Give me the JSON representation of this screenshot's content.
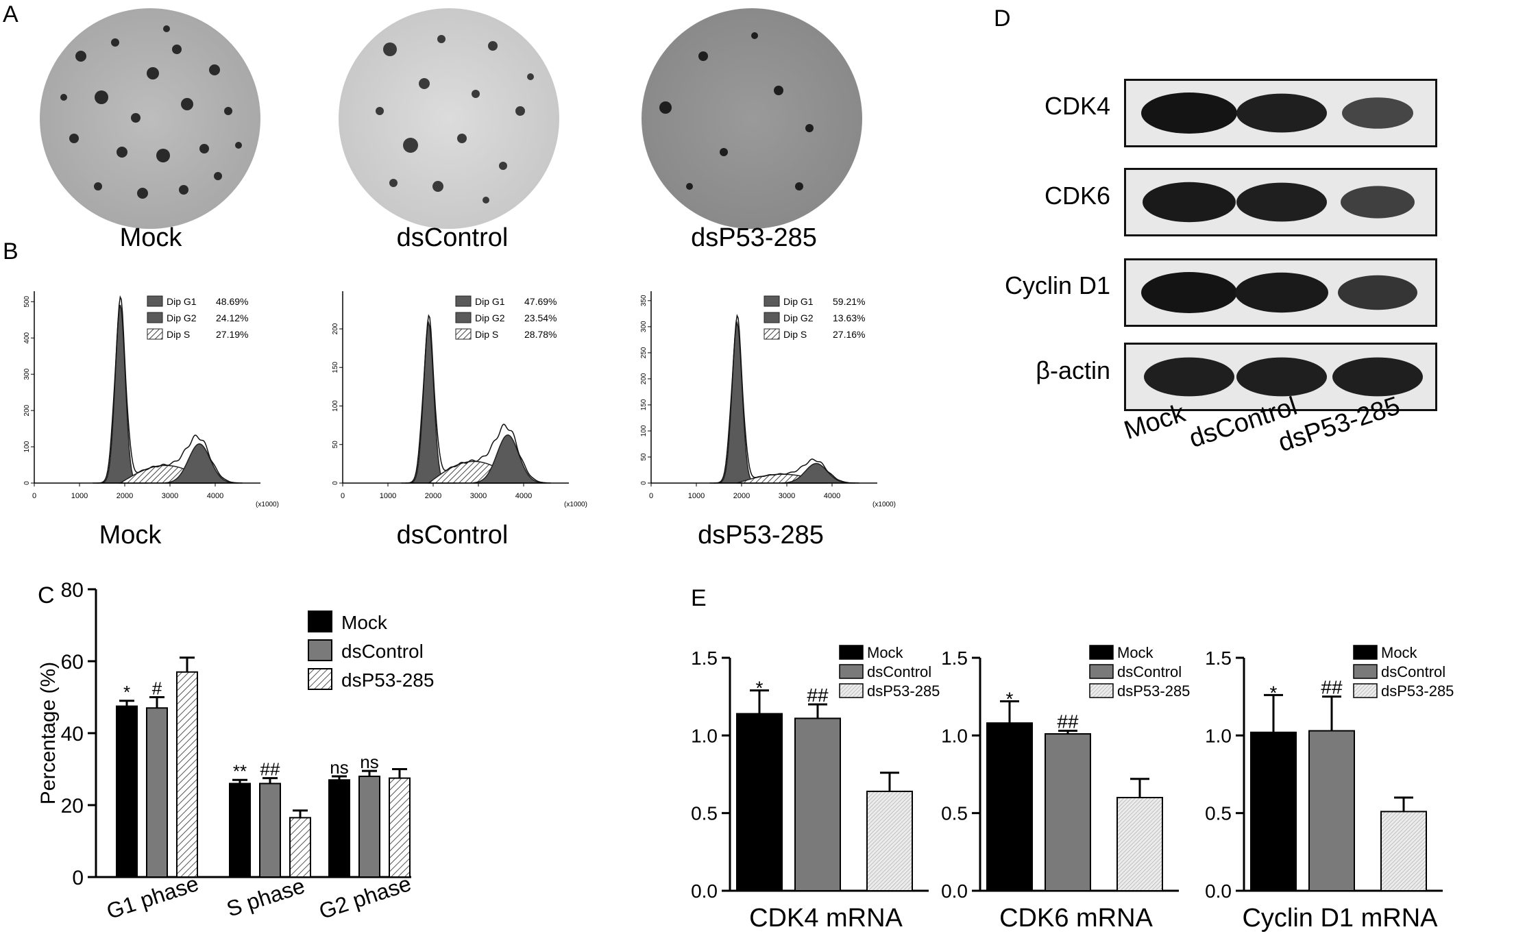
{
  "panels": {
    "A": "A",
    "B": "B",
    "C": "C",
    "D": "D",
    "E": "E"
  },
  "groups": [
    "Mock",
    "dsControl",
    "dsP53-285"
  ],
  "panel_b": {
    "legend_labels": [
      "Dip G1",
      "Dip G2",
      "Dip S"
    ],
    "x_ticks": [
      "0",
      "1000",
      "2000",
      "3000",
      "4000"
    ],
    "x_unit": "(x1000)",
    "plots": [
      {
        "name": "Mock",
        "g1": "48.69%",
        "g2": "24.12%",
        "s": "27.19%",
        "y_ticks": [
          "0",
          "100",
          "200",
          "300",
          "400",
          "500"
        ],
        "ymax": 510
      },
      {
        "name": "dsControl",
        "g1": "47.69%",
        "g2": "23.54%",
        "s": "28.78%",
        "y_ticks": [
          "0",
          "50",
          "100",
          "150",
          "200"
        ],
        "ymax": 240
      },
      {
        "name": "dsP53-285",
        "g1": "59.21%",
        "g2": "13.63%",
        "s": "27.16%",
        "y_ticks": [
          "0",
          "50",
          "100",
          "150",
          "200",
          "250",
          "300",
          "350"
        ],
        "ymax": 355
      }
    ]
  },
  "panel_d": {
    "bands": [
      "CDK4",
      "CDK6",
      "Cyclin D1",
      "β-actin"
    ],
    "intensity": [
      [
        1.0,
        0.9,
        0.55
      ],
      [
        0.95,
        0.9,
        0.6
      ],
      [
        1.0,
        0.95,
        0.7
      ],
      [
        0.9,
        0.9,
        0.9
      ]
    ]
  },
  "chart_data": [
    {
      "type": "bar",
      "panel": "C",
      "ylabel": "Percentage (%)",
      "ylim": [
        0,
        80
      ],
      "y_ticks": [
        "0",
        "20",
        "40",
        "60",
        "80"
      ],
      "categories": [
        "G1 phase",
        "S phase",
        "G2 phase"
      ],
      "series": [
        {
          "name": "Mock",
          "values": [
            47.5,
            26,
            27
          ],
          "errors": [
            1.5,
            1,
            1
          ],
          "marks": [
            "*",
            "**",
            "ns"
          ]
        },
        {
          "name": "dsControl",
          "values": [
            47,
            26,
            28
          ],
          "errors": [
            3,
            1.5,
            1.5
          ],
          "marks": [
            "#",
            "##",
            "ns"
          ]
        },
        {
          "name": "dsP53-285",
          "values": [
            57,
            16.5,
            27.5
          ],
          "errors": [
            4,
            2,
            2.5
          ],
          "marks": [
            "",
            "",
            ""
          ]
        }
      ],
      "legend": "top-right"
    },
    {
      "type": "bar",
      "panel": "E",
      "xlabel": "CDK4 mRNA",
      "ylim": [
        0,
        1.5
      ],
      "y_ticks": [
        "0.0",
        "0.5",
        "1.0",
        "1.5"
      ],
      "categories": [
        "Mock",
        "dsControl",
        "dsP53-285"
      ],
      "values": [
        1.14,
        1.11,
        0.64
      ],
      "errors": [
        0.15,
        0.09,
        0.12
      ],
      "marks": [
        "*",
        "##",
        ""
      ]
    },
    {
      "type": "bar",
      "panel": "E",
      "xlabel": "CDK6 mRNA",
      "ylim": [
        0,
        1.5
      ],
      "y_ticks": [
        "0.0",
        "0.5",
        "1.0",
        "1.5"
      ],
      "categories": [
        "Mock",
        "dsControl",
        "dsP53-285"
      ],
      "values": [
        1.08,
        1.01,
        0.6
      ],
      "errors": [
        0.14,
        0.02,
        0.12
      ],
      "marks": [
        "*",
        "##",
        ""
      ]
    },
    {
      "type": "bar",
      "panel": "E",
      "xlabel": "Cyclin D1 mRNA",
      "ylim": [
        0,
        1.5
      ],
      "y_ticks": [
        "0.0",
        "0.5",
        "1.0",
        "1.5"
      ],
      "categories": [
        "Mock",
        "dsControl",
        "dsP53-285"
      ],
      "values": [
        1.02,
        1.03,
        0.51
      ],
      "errors": [
        0.24,
        0.22,
        0.09
      ],
      "marks": [
        "*",
        "##",
        ""
      ]
    }
  ],
  "colors": {
    "mock": "#000000",
    "dscontrol": "#7a7a7a",
    "dsp53": "#e8e8e8",
    "peak": "#5a5a5a"
  }
}
